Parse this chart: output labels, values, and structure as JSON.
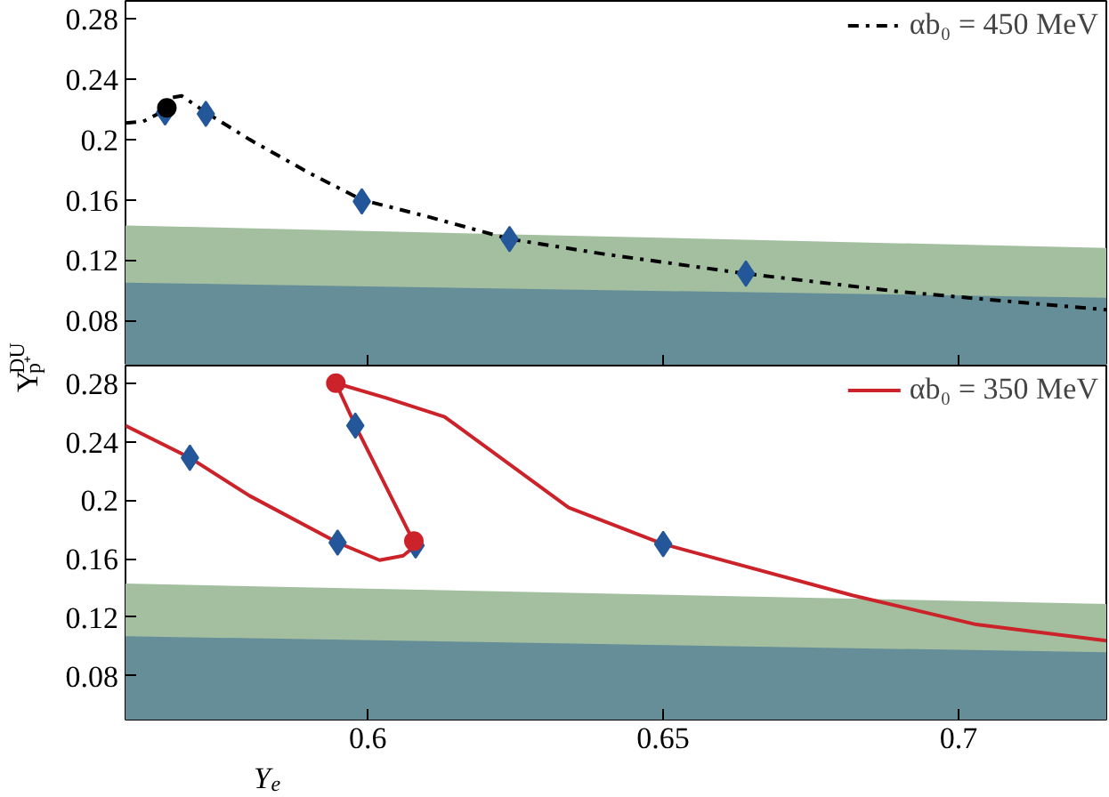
{
  "chart_data": [
    {
      "type": "line",
      "ylabel": "Y$_{p⁺}$$^{DU}$",
      "xlim": [
        0.559,
        0.725
      ],
      "ylim": [
        0.05,
        0.292
      ],
      "xticks": [
        0.6,
        0.65,
        0.7
      ],
      "yticks": [
        0.08,
        0.12,
        0.16,
        0.2,
        0.24,
        0.28
      ],
      "tick_labels": "y",
      "legend": "top right",
      "grid": false,
      "series": [
        {
          "type": "area",
          "color": "#a3bfa0",
          "x": [
            0.559,
            0.725
          ],
          "values": [
            0.143,
            0.128
          ]
        },
        {
          "type": "area",
          "color": "#668e98",
          "x": [
            0.559,
            0.725
          ],
          "values": [
            0.105,
            0.095
          ]
        },
        {
          "name": "αb₀ = 450 MeV",
          "color": "#000000",
          "line_style": "dashdot",
          "x": [
            0.559,
            0.562,
            0.565,
            0.567,
            0.5685,
            0.5726,
            0.58,
            0.59,
            0.599,
            0.61,
            0.624,
            0.64,
            0.664,
            0.69,
            0.725
          ],
          "values": [
            0.211,
            0.212,
            0.218,
            0.228,
            0.229,
            0.218,
            0.2,
            0.178,
            0.16,
            0.149,
            0.134,
            0.124,
            0.111,
            0.099,
            0.087
          ]
        },
        {
          "type": "scatter",
          "marker": "diamond",
          "color": "#24579a",
          "x": [
            0.5657,
            0.5726,
            0.599,
            0.624,
            0.664
          ],
          "values": [
            0.218,
            0.217,
            0.159,
            0.134,
            0.111
          ]
        },
        {
          "type": "scatter",
          "marker": "circle",
          "color": "#000000",
          "x": [
            0.566
          ],
          "values": [
            0.221
          ]
        }
      ]
    },
    {
      "type": "line",
      "xlabel": "Y$_{e}$",
      "xlim": [
        0.559,
        0.725
      ],
      "ylim": [
        0.05,
        0.292
      ],
      "xticks": [
        0.6,
        0.65,
        0.7
      ],
      "yticks": [
        0.08,
        0.12,
        0.16,
        0.2,
        0.24,
        0.28
      ],
      "legend": "top right",
      "grid": false,
      "series": [
        {
          "type": "area",
          "color": "#a3bfa0",
          "x": [
            0.559,
            0.725
          ],
          "values": [
            0.143,
            0.129
          ]
        },
        {
          "type": "area",
          "color": "#668e98",
          "x": [
            0.559,
            0.725
          ],
          "values": [
            0.107,
            0.096
          ]
        },
        {
          "name": "αb₀ = 350 MeV",
          "color": "#cc2229",
          "line_style": "solid",
          "x": [
            0.559,
            0.5699,
            0.58,
            0.5949,
            0.602,
            0.606,
            0.6081,
            0.5979,
            0.5946,
            0.603,
            0.613,
            0.634,
            0.65,
            0.682,
            0.703,
            0.725
          ],
          "values": [
            0.251,
            0.229,
            0.203,
            0.171,
            0.159,
            0.162,
            0.169,
            0.251,
            0.28,
            0.27,
            0.257,
            0.195,
            0.17,
            0.135,
            0.115,
            0.104
          ]
        },
        {
          "type": "scatter",
          "marker": "diamond",
          "color": "#24579a",
          "x": [
            0.5699,
            0.5949,
            0.6081,
            0.5979,
            0.65
          ],
          "values": [
            0.229,
            0.171,
            0.169,
            0.251,
            0.17
          ]
        },
        {
          "type": "scatter",
          "marker": "circle",
          "color": "#cc2229",
          "x": [
            0.6078,
            0.5946
          ],
          "values": [
            0.172,
            0.28
          ]
        }
      ]
    }
  ]
}
